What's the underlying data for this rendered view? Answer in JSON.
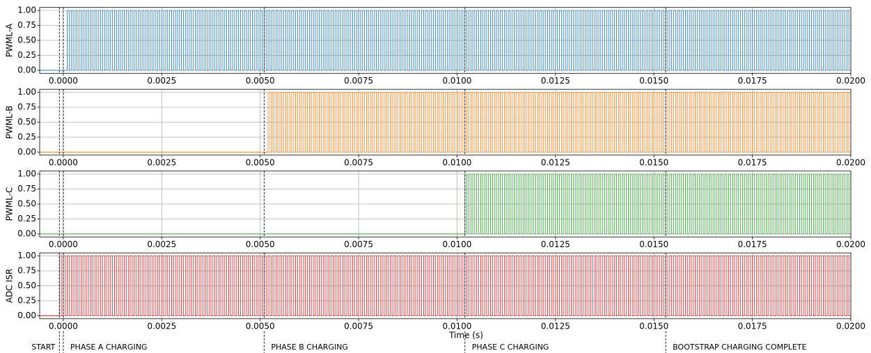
{
  "chart_data": [
    {
      "type": "pulse",
      "ylabel": "PWML-A",
      "xlim": [
        -0.0006,
        0.02
      ],
      "ylim": [
        -0.05,
        1.05
      ],
      "grid": true,
      "xticks": [
        {
          "value": 0,
          "label": "0.0000"
        },
        {
          "value": 0.0025,
          "label": "0.0025"
        },
        {
          "value": 0.005,
          "label": "0.0050"
        },
        {
          "value": 0.0075,
          "label": "0.0075"
        },
        {
          "value": 0.01,
          "label": "0.0100"
        },
        {
          "value": 0.0125,
          "label": "0.0125"
        },
        {
          "value": 0.015,
          "label": "0.0150"
        },
        {
          "value": 0.0175,
          "label": "0.0175"
        },
        {
          "value": 0.02,
          "label": "0.0200"
        }
      ],
      "yticks": [
        {
          "value": 0,
          "label": "0.00"
        },
        {
          "value": 0.25,
          "label": "0.25"
        },
        {
          "value": 0.5,
          "label": "0.50"
        },
        {
          "value": 0.75,
          "label": "0.75"
        },
        {
          "value": 1,
          "label": "1.00"
        }
      ],
      "series": [
        {
          "color": "#1f77b4",
          "levels": [
            0,
            1
          ],
          "pulse_start": 0.0001,
          "pulse_end": 0.02,
          "pulse_period": 0.0001
        }
      ]
    },
    {
      "type": "pulse",
      "ylabel": "PWML-B",
      "xlim": [
        -0.0006,
        0.02
      ],
      "ylim": [
        -0.05,
        1.05
      ],
      "grid": true,
      "xticks": [
        {
          "value": 0,
          "label": "0.0000"
        },
        {
          "value": 0.0025,
          "label": "0.0025"
        },
        {
          "value": 0.005,
          "label": "0.0050"
        },
        {
          "value": 0.0075,
          "label": "0.0075"
        },
        {
          "value": 0.01,
          "label": "0.0100"
        },
        {
          "value": 0.0125,
          "label": "0.0125"
        },
        {
          "value": 0.015,
          "label": "0.0150"
        },
        {
          "value": 0.0175,
          "label": "0.0175"
        },
        {
          "value": 0.02,
          "label": "0.0200"
        }
      ],
      "yticks": [
        {
          "value": 0,
          "label": "0.00"
        },
        {
          "value": 0.25,
          "label": "0.25"
        },
        {
          "value": 0.5,
          "label": "0.50"
        },
        {
          "value": 0.75,
          "label": "0.75"
        },
        {
          "value": 1,
          "label": "1.00"
        }
      ],
      "series": [
        {
          "color": "#ff7f0e",
          "levels": [
            0,
            1
          ],
          "pulse_start": 0.0052,
          "pulse_end": 0.02,
          "pulse_period": 0.0001
        }
      ]
    },
    {
      "type": "pulse",
      "ylabel": "PWML-C",
      "xlim": [
        -0.0006,
        0.02
      ],
      "ylim": [
        -0.05,
        1.05
      ],
      "grid": true,
      "xticks": [
        {
          "value": 0,
          "label": "0.0000"
        },
        {
          "value": 0.0025,
          "label": "0.0025"
        },
        {
          "value": 0.005,
          "label": "0.0050"
        },
        {
          "value": 0.0075,
          "label": "0.0075"
        },
        {
          "value": 0.01,
          "label": "0.0100"
        },
        {
          "value": 0.0125,
          "label": "0.0125"
        },
        {
          "value": 0.015,
          "label": "0.0150"
        },
        {
          "value": 0.0175,
          "label": "0.0175"
        },
        {
          "value": 0.02,
          "label": "0.0200"
        }
      ],
      "yticks": [
        {
          "value": 0,
          "label": "0.00"
        },
        {
          "value": 0.25,
          "label": "0.25"
        },
        {
          "value": 0.5,
          "label": "0.50"
        },
        {
          "value": 0.75,
          "label": "0.75"
        },
        {
          "value": 1,
          "label": "1.00"
        }
      ],
      "series": [
        {
          "color": "#2ca02c",
          "levels": [
            0,
            1
          ],
          "pulse_start": 0.0102,
          "pulse_end": 0.02,
          "pulse_period": 0.0001
        }
      ]
    },
    {
      "type": "pulse",
      "ylabel": "ADC ISR",
      "xlabel": "Time (s)",
      "xlim": [
        -0.0006,
        0.02
      ],
      "ylim": [
        -0.05,
        1.05
      ],
      "grid": true,
      "xticks": [
        {
          "value": 0,
          "label": "0.0000"
        },
        {
          "value": 0.0025,
          "label": "0.0025"
        },
        {
          "value": 0.005,
          "label": "0.0050"
        },
        {
          "value": 0.0075,
          "label": "0.0075"
        },
        {
          "value": 0.01,
          "label": "0.0100"
        },
        {
          "value": 0.0125,
          "label": "0.0125"
        },
        {
          "value": 0.015,
          "label": "0.0150"
        },
        {
          "value": 0.0175,
          "label": "0.0175"
        },
        {
          "value": 0.02,
          "label": "0.0200"
        }
      ],
      "yticks": [
        {
          "value": 0,
          "label": "0.00"
        },
        {
          "value": 0.25,
          "label": "0.25"
        },
        {
          "value": 0.5,
          "label": "0.50"
        },
        {
          "value": 0.75,
          "label": "0.75"
        },
        {
          "value": 1,
          "label": "1.00"
        }
      ],
      "series": [
        {
          "color": "#d62728",
          "levels": [
            0,
            1
          ],
          "pulse_start": -0.0001,
          "pulse_end": 0.02,
          "pulse_period": 0.0001
        }
      ]
    }
  ],
  "events": [
    {
      "time": -0.0001,
      "label": "START"
    },
    {
      "time": 0.0,
      "label": "PHASE A CHARGING"
    },
    {
      "time": 0.0051,
      "label": "PHASE B CHARGING"
    },
    {
      "time": 0.0102,
      "label": "PHASE C CHARGING"
    },
    {
      "time": 0.0153,
      "label": "BOOTSTRAP CHARGING COMPLETE"
    }
  ]
}
